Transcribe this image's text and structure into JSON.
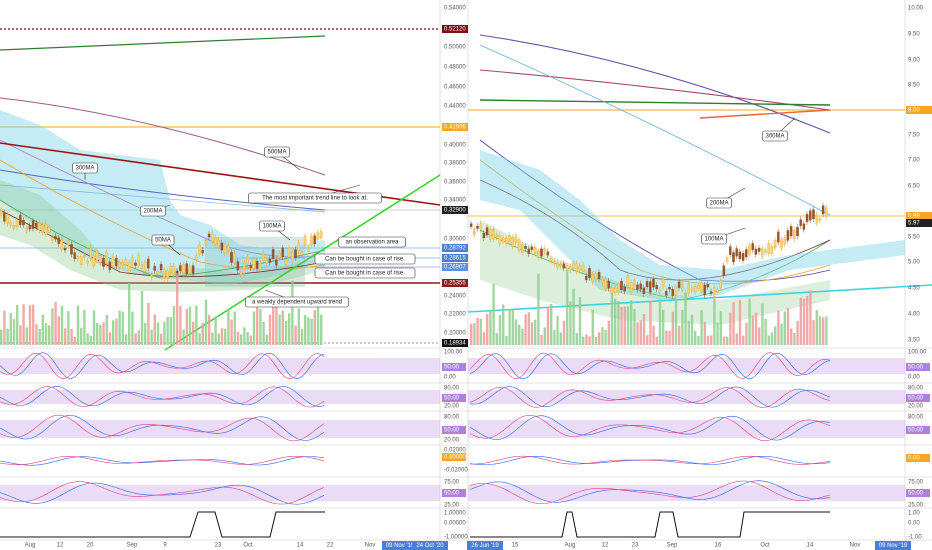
{
  "left": {
    "price_axis": [
      "0.54000",
      "0.50000",
      "0.48000",
      "0.46000",
      "0.44000",
      "0.40000",
      "0.38000",
      "0.36000",
      "0.34000",
      "0.30000",
      "0.24000",
      "0.22000",
      "0.20000"
    ],
    "price_tags": [
      "0.52120",
      "0.41906",
      "0.32900",
      "0.28792",
      "0.28615",
      "0.26907",
      "0.25355",
      "0.18934"
    ],
    "annotations": [
      "500MA",
      "300MA",
      "200MA",
      "50MA",
      "100MA",
      "The most important trend line to look at.",
      "an observation area",
      "Can be bought in case of rise.",
      "Can be bought in case of rise.",
      "a weakly dependent upward trend"
    ],
    "indicator_axis": [
      [
        "100.00",
        "50.00",
        "0.00"
      ],
      [
        "80.00",
        "50.00",
        "20.00"
      ],
      [
        "80.00",
        "50.00",
        "20.00"
      ],
      [
        "0.02000",
        "0.00000",
        "-0.02000"
      ],
      [
        "75.00",
        "50.00",
        "25.00"
      ],
      [
        "1.00000",
        "0.00000",
        "-1.00000"
      ]
    ],
    "time_axis": [
      "Aug",
      "12",
      "20",
      "Sep",
      "9",
      "23",
      "Oct",
      "14",
      "22",
      "Nov"
    ],
    "time_tags": [
      "09 Nov '19",
      "24 Oct '20"
    ]
  },
  "right": {
    "price_axis": [
      "10.00",
      "9.50",
      "9.00",
      "8.50",
      "7.50",
      "7.00",
      "6.50",
      "5.50",
      "5.00",
      "4.50",
      "4.00",
      "3.50"
    ],
    "price_tags": [
      "8.00",
      "5.99",
      "5.97"
    ],
    "annotations": [
      "300MA",
      "200MA",
      "100MA"
    ],
    "indicator_axis": [
      [
        "100.00",
        "50.00",
        "0.00"
      ],
      [
        "80.00",
        "50.00",
        "20.00"
      ],
      [
        "80.00",
        "50.00"
      ],
      [
        "0.00"
      ],
      [
        "75.00",
        "50.00",
        "25.00"
      ],
      [
        "1.00",
        "0.00",
        "-1.00"
      ]
    ],
    "time_axis": [
      "15",
      "Aug",
      "12",
      "23",
      "Sep",
      "16",
      "Oct",
      "14",
      "Nov"
    ],
    "time_tags": [
      "26 Jun '19",
      "09 Nov '19"
    ]
  }
}
